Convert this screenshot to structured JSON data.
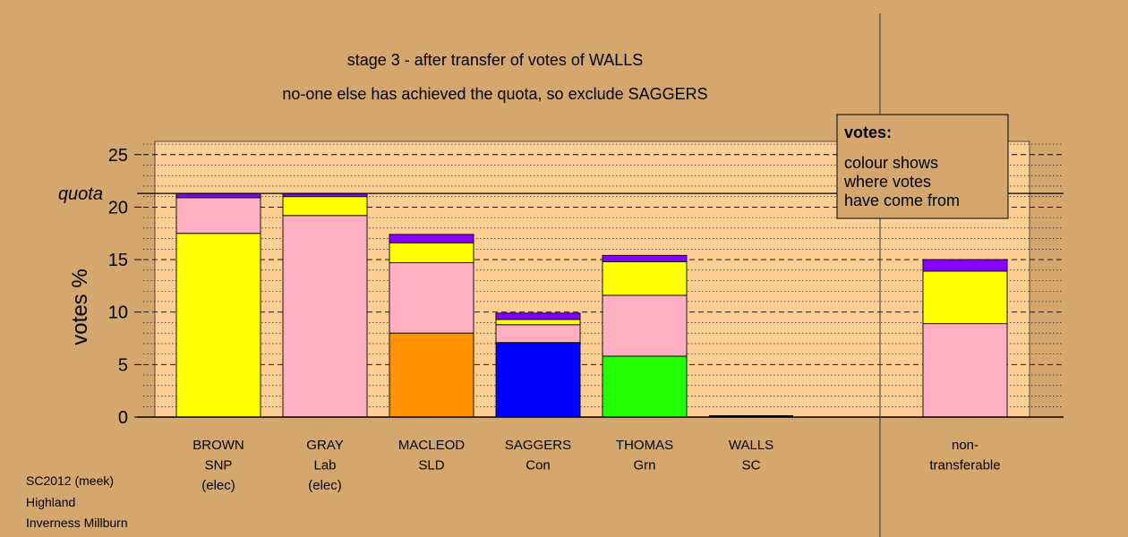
{
  "title_line1": "stage 3 - after transfer of votes of WALLS",
  "title_line2": "no-one else has achieved the quota, so exclude SAGGERS",
  "ylabel": "votes %",
  "quota_label": "quota",
  "legend": {
    "heading": "votes:",
    "line1": "colour shows",
    "line2": "where votes",
    "line3": "have come from"
  },
  "footer": {
    "line1": "SC2012 (meek)",
    "line2": "Highland",
    "line3": "Inverness Millburn"
  },
  "colors": {
    "background": "#d4a76f",
    "plot_area": "#fdcf94",
    "snp": "#ffff00",
    "lab": "#ffb0c0",
    "sld": "#ff9000",
    "con": "#0000ff",
    "grn": "#22ff00",
    "sc": "#8800ff"
  },
  "chart_data": {
    "type": "bar",
    "stacked": true,
    "ylim": [
      0,
      26
    ],
    "yticks": [
      0,
      5,
      10,
      15,
      20,
      25
    ],
    "quota": 21.3,
    "grid": true,
    "legend_position": "top-right",
    "categories": [
      {
        "name": "BROWN",
        "party": "SNP",
        "note": "(elec)"
      },
      {
        "name": "GRAY",
        "party": "Lab",
        "note": "(elec)"
      },
      {
        "name": "MACLEOD",
        "party": "SLD",
        "note": ""
      },
      {
        "name": "SAGGERS",
        "party": "Con",
        "note": ""
      },
      {
        "name": "THOMAS",
        "party": "Grn",
        "note": ""
      },
      {
        "name": "WALLS",
        "party": "SC",
        "note": ""
      },
      {
        "name": "non-",
        "party": "transferable",
        "note": ""
      }
    ],
    "series": [
      {
        "source": "sld",
        "values": [
          0,
          0,
          8.0,
          0,
          0,
          0,
          0
        ]
      },
      {
        "source": "con",
        "values": [
          0,
          0,
          0,
          7.1,
          0,
          0,
          0
        ]
      },
      {
        "source": "grn",
        "values": [
          0,
          0,
          0,
          0,
          5.8,
          0,
          0
        ]
      },
      {
        "source": "lab",
        "values": [
          0,
          19.2,
          6.7,
          1.7,
          5.8,
          0,
          8.9
        ]
      },
      {
        "source": "snp",
        "values": [
          17.5,
          1.8,
          1.9,
          0.5,
          3.2,
          0,
          5.0
        ]
      },
      {
        "source": "lab",
        "values": [
          3.4,
          0,
          0,
          0,
          0,
          0,
          0
        ]
      },
      {
        "source": "sc",
        "values": [
          0.4,
          0.3,
          0.8,
          0.6,
          0.6,
          0,
          1.1
        ]
      }
    ]
  }
}
